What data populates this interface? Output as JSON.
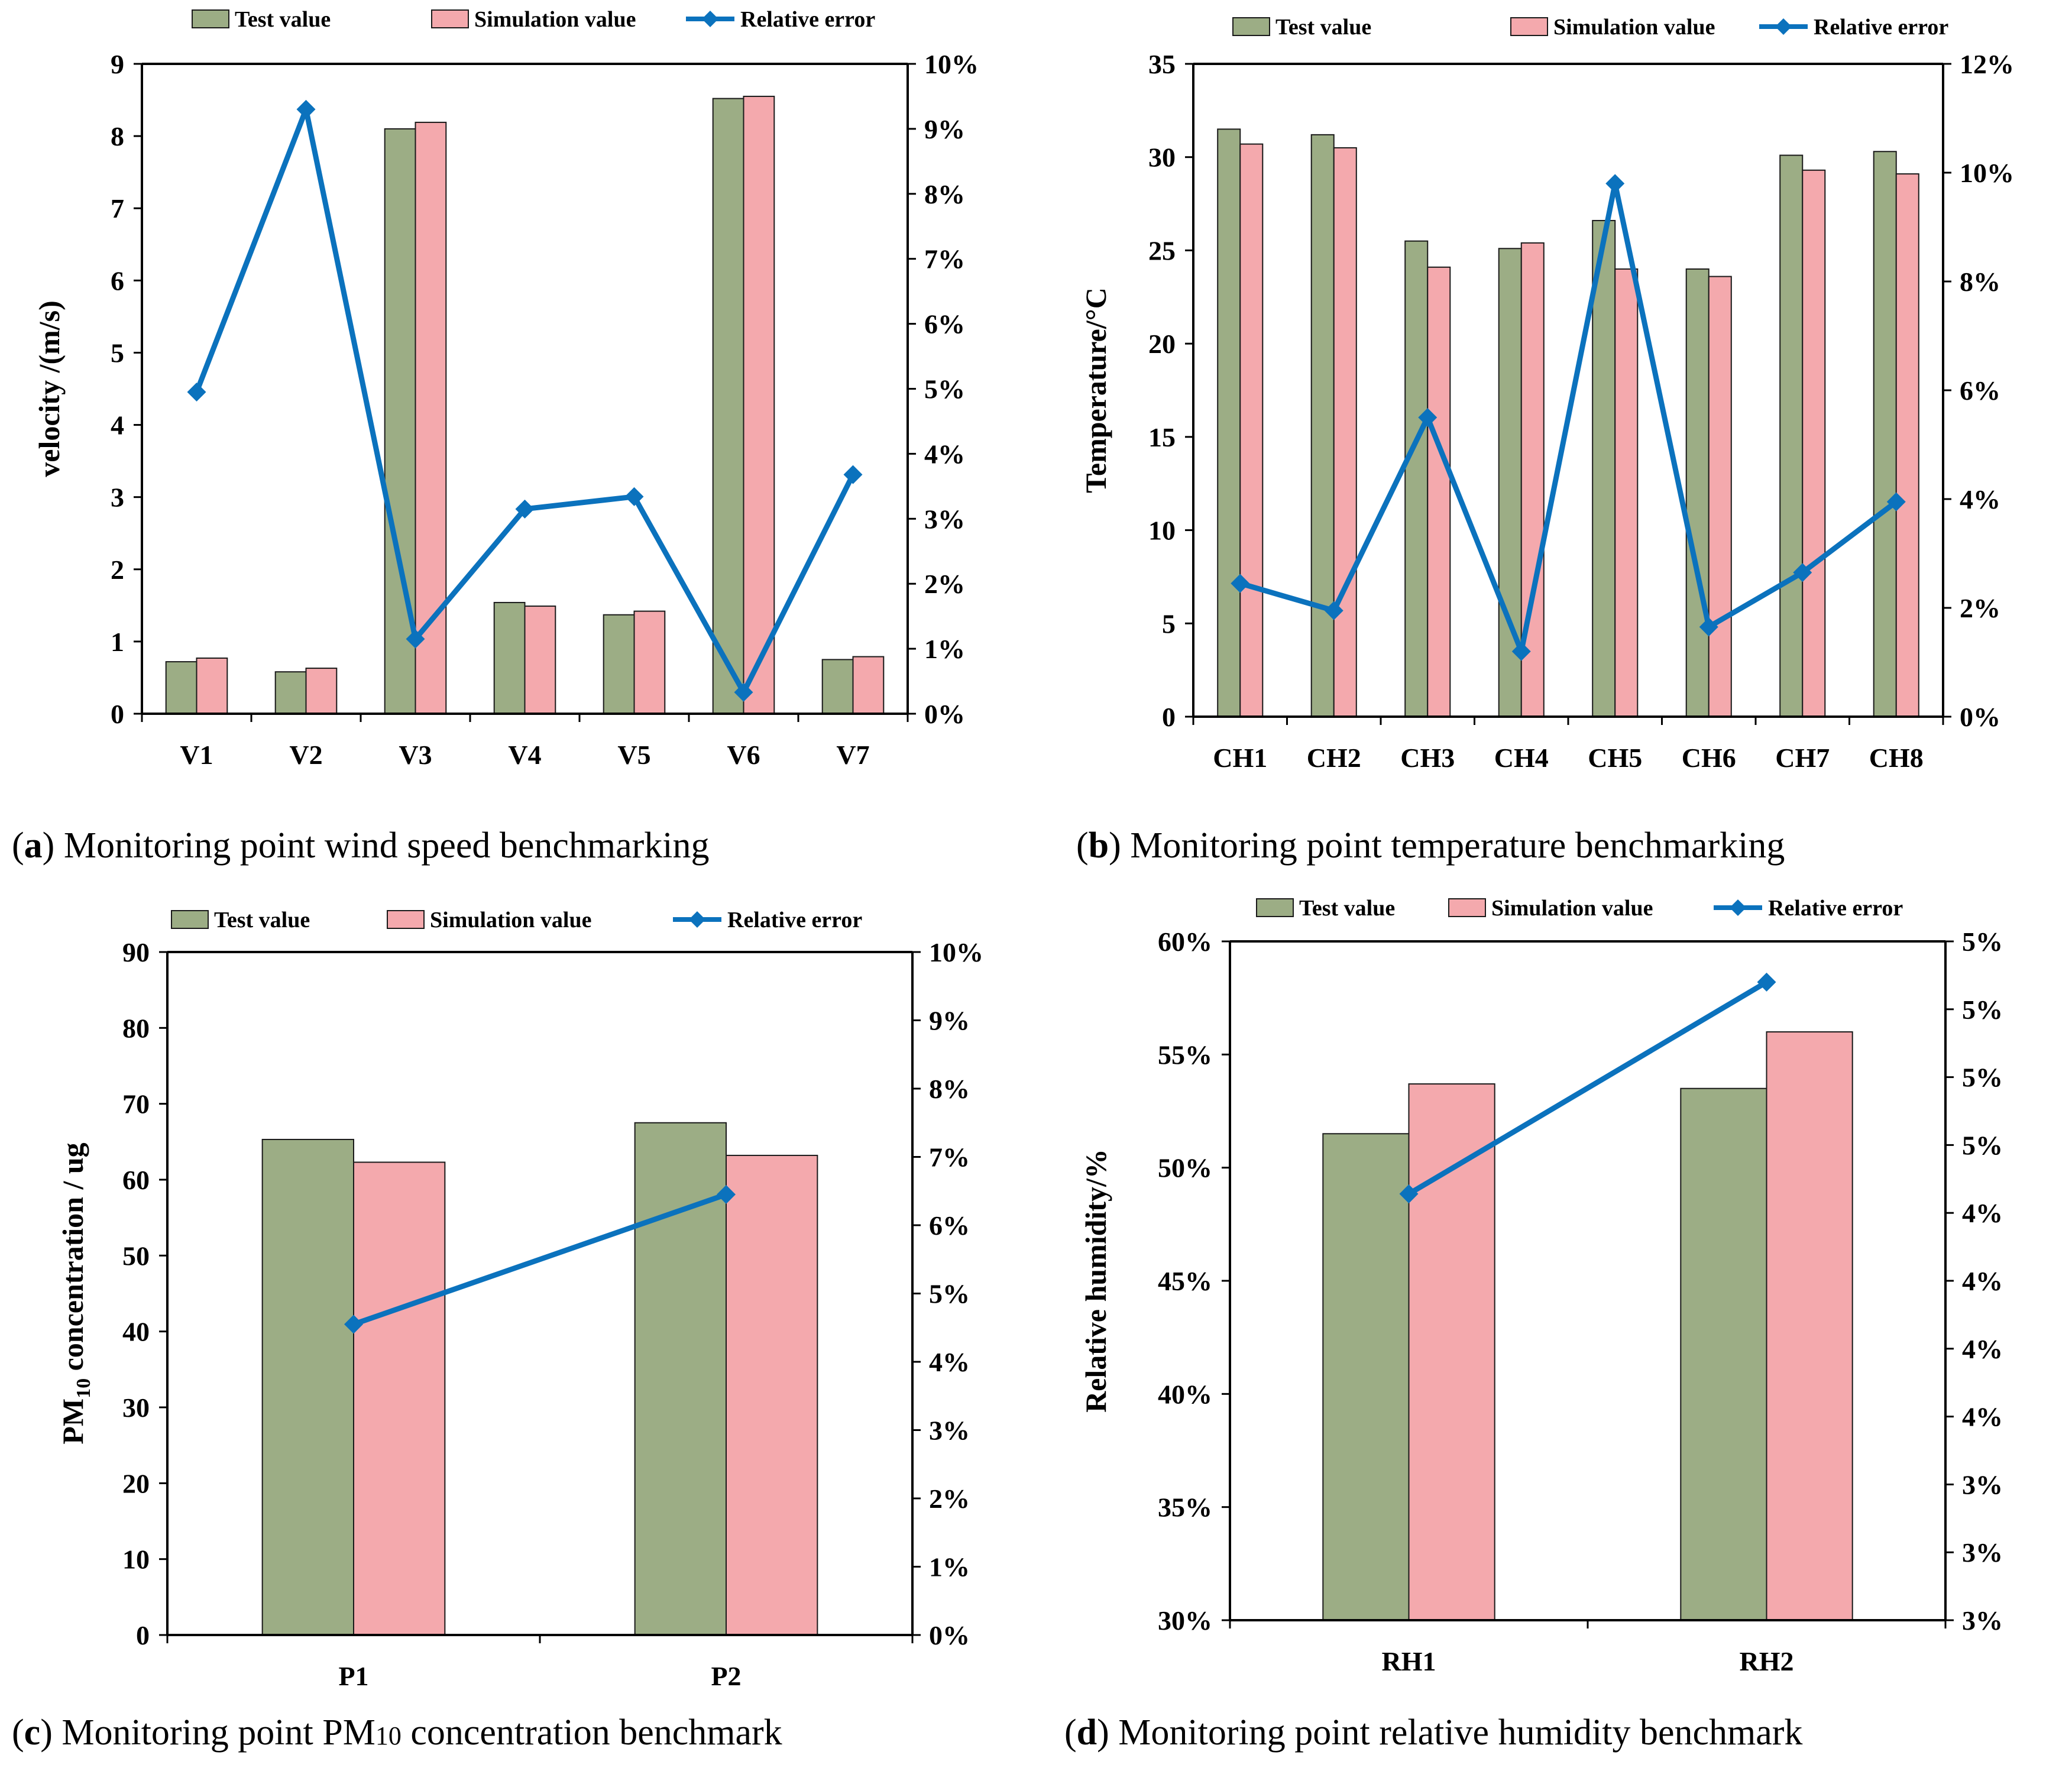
{
  "colors": {
    "test": "#9cad85",
    "simulation": "#f4a9ad",
    "error_line": "#0b72bd",
    "bar_stroke": "#1a1a1a",
    "axis": "#000000"
  },
  "legend": {
    "test": "Test value",
    "simulation": "Simulation value",
    "error": "Relative error"
  },
  "chart_data": [
    {
      "type": "bar",
      "panel": "a",
      "caption_letter": "a",
      "caption_text": "Monitoring point wind speed benchmarking",
      "ylabel": "velocity /(m/s)",
      "categories": [
        "V1",
        "V2",
        "V3",
        "V4",
        "V5",
        "V6",
        "V7"
      ],
      "ylim": [
        0,
        9
      ],
      "y_ticks": [
        "0",
        "1",
        "2",
        "3",
        "4",
        "5",
        "6",
        "7",
        "8",
        "9"
      ],
      "y2lim": [
        0,
        10
      ],
      "y2_ticks": [
        "0%",
        "1%",
        "2%",
        "3%",
        "4%",
        "5%",
        "6%",
        "7%",
        "8%",
        "9%",
        "10%"
      ],
      "series": [
        {
          "name": "Test value",
          "values": [
            0.72,
            0.58,
            8.1,
            1.54,
            1.37,
            8.52,
            0.75
          ]
        },
        {
          "name": "Simulation value",
          "values": [
            0.77,
            0.63,
            8.19,
            1.49,
            1.42,
            8.55,
            0.79
          ]
        },
        {
          "name": "Relative error",
          "axis": "right",
          "unit": "%",
          "values": [
            4.95,
            9.3,
            1.15,
            3.15,
            3.34,
            0.33,
            3.68
          ]
        }
      ]
    },
    {
      "type": "bar",
      "panel": "b",
      "caption_letter": "b",
      "caption_text": "Monitoring point temperature benchmarking",
      "ylabel": "Temperature/°C",
      "categories": [
        "CH1",
        "CH2",
        "CH3",
        "CH4",
        "CH5",
        "CH6",
        "CH7",
        "CH8"
      ],
      "ylim": [
        0,
        35
      ],
      "y_ticks": [
        "0",
        "5",
        "10",
        "15",
        "20",
        "25",
        "30",
        "35"
      ],
      "y2lim": [
        0,
        12
      ],
      "y2_ticks": [
        "0%",
        "2%",
        "4%",
        "6%",
        "8%",
        "10%",
        "12%"
      ],
      "series": [
        {
          "name": "Test value",
          "values": [
            31.5,
            31.2,
            25.5,
            25.1,
            26.6,
            24.0,
            30.1,
            30.3
          ]
        },
        {
          "name": "Simulation value",
          "values": [
            30.7,
            30.5,
            24.1,
            25.4,
            24.0,
            23.6,
            29.3,
            29.1
          ]
        },
        {
          "name": "Relative error",
          "axis": "right",
          "unit": "%",
          "values": [
            2.45,
            1.95,
            5.5,
            1.2,
            9.8,
            1.65,
            2.65,
            3.95
          ]
        }
      ]
    },
    {
      "type": "bar",
      "panel": "c",
      "caption_letter": "c",
      "caption_text": "Monitoring point PM",
      "caption_sub": "10",
      "caption_tail": " concentration benchmark",
      "ylabel_prefix": "PM",
      "ylabel_sub": "10",
      "ylabel_suffix": " concentration / ug",
      "categories": [
        "P1",
        "P2"
      ],
      "ylim": [
        0,
        90
      ],
      "y_ticks": [
        "0",
        "10",
        "20",
        "30",
        "40",
        "50",
        "60",
        "70",
        "80",
        "90"
      ],
      "y2lim": [
        0,
        10
      ],
      "y2_ticks": [
        "0%",
        "1%",
        "2%",
        "3%",
        "4%",
        "5%",
        "6%",
        "7%",
        "8%",
        "9%",
        "10%"
      ],
      "series": [
        {
          "name": "Test value",
          "values": [
            65.3,
            67.5
          ]
        },
        {
          "name": "Simulation value",
          "values": [
            62.3,
            63.2
          ]
        },
        {
          "name": "Relative error",
          "axis": "right",
          "unit": "%",
          "values": [
            4.55,
            6.45
          ]
        }
      ]
    },
    {
      "type": "bar",
      "panel": "d",
      "caption_letter": "d",
      "caption_text": "Monitoring point relative humidity benchmark",
      "ylabel": "Relative humidity/%",
      "categories": [
        "RH1",
        "RH2"
      ],
      "ylim": [
        30,
        60
      ],
      "y_ticks": [
        "30%",
        "35%",
        "40%",
        "45%",
        "50%",
        "55%",
        "60%"
      ],
      "y2lim": [
        2.5,
        5
      ],
      "y2_ticks": [
        "3%",
        "3%",
        "3%",
        "4%",
        "4%",
        "4%",
        "4%",
        "5%",
        "5%",
        "5%",
        "5%"
      ],
      "series": [
        {
          "name": "Test value",
          "values": [
            51.5,
            53.5
          ]
        },
        {
          "name": "Simulation value",
          "values": [
            53.7,
            56.0
          ]
        },
        {
          "name": "Relative error",
          "axis": "right",
          "unit": "%",
          "values": [
            4.07,
            4.85
          ]
        }
      ]
    }
  ]
}
